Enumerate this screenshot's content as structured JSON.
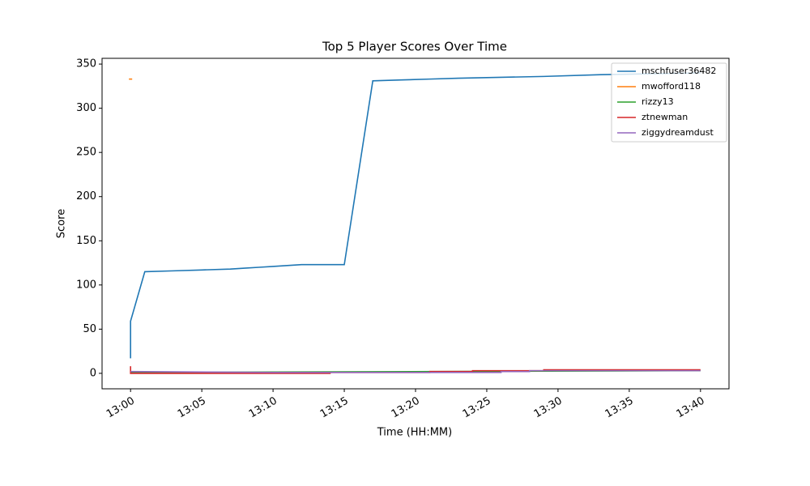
{
  "chart_data": {
    "type": "line",
    "title": "Top 5 Player Scores Over Time",
    "x_label": "Time (HH:MM)",
    "y_label": "Score",
    "xlim": [
      "12:58",
      "13:42"
    ],
    "xticks": [
      "13:00",
      "13:05",
      "13:10",
      "13:15",
      "13:20",
      "13:25",
      "13:30",
      "13:35",
      "13:40"
    ],
    "ylim": [
      -17.5,
      356.5
    ],
    "yticks": [
      0,
      50,
      100,
      150,
      200,
      250,
      300,
      350
    ],
    "legend": "upper right",
    "series": [
      {
        "name": "mschfuser36482",
        "color": "#1f77b4",
        "x": [
          "13:00",
          "13:00",
          "13:01",
          "13:03",
          "13:05",
          "13:07",
          "13:08",
          "13:09",
          "13:10",
          "13:11",
          "13:12",
          "13:15",
          "13:17",
          "13:19",
          "13:21",
          "13:23",
          "13:29",
          "13:33",
          "13:40"
        ],
        "values": [
          17,
          59,
          115,
          116,
          117,
          118,
          119,
          120,
          121,
          122,
          123,
          123,
          331,
          332,
          333,
          334,
          336,
          338,
          340
        ]
      },
      {
        "name": "mwofford118",
        "color": "#ff7f0e",
        "x": [
          "13:00"
        ],
        "values": [
          333
        ]
      },
      {
        "name": "rizzy13",
        "color": "#2ca02c",
        "x": [
          "13:00",
          "13:40"
        ],
        "values": [
          1,
          3
        ]
      },
      {
        "name": "ztnewman",
        "color": "#d62728",
        "x": [
          "13:00",
          "13:00",
          "13:14",
          "13:14",
          "13:21",
          "13:21",
          "13:24",
          "13:24",
          "13:29",
          "13:29",
          "13:40"
        ],
        "values": [
          8,
          0,
          0,
          1,
          1,
          2,
          2,
          3,
          3,
          4,
          4
        ]
      },
      {
        "name": "ziggydreamdust",
        "color": "#9467bd",
        "x": [
          "13:00",
          "13:10",
          "13:26",
          "13:26",
          "13:28",
          "13:28",
          "13:40"
        ],
        "values": [
          2,
          1,
          1,
          2,
          2,
          3,
          3
        ]
      }
    ]
  }
}
